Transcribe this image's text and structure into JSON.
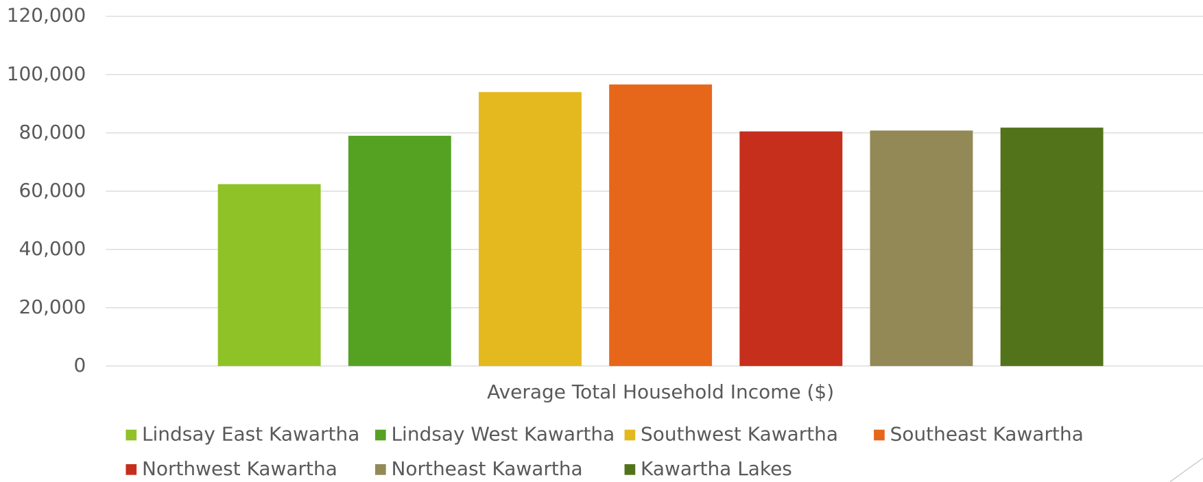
{
  "chart_data": {
    "type": "bar",
    "categories": [
      "Average Total Household Income ($)"
    ],
    "series": [
      {
        "name": "Lindsay East Kawartha",
        "color": "#8fc226",
        "values": [
          62400
        ]
      },
      {
        "name": "Lindsay West Kawartha",
        "color": "#55a223",
        "values": [
          79000
        ]
      },
      {
        "name": "Southwest Kawartha",
        "color": "#e4b920",
        "values": [
          94000
        ]
      },
      {
        "name": "Southeast Kawartha",
        "color": "#e6661a",
        "values": [
          96600
        ]
      },
      {
        "name": "Northwest Kawartha",
        "color": "#c62f1b",
        "values": [
          80500
        ]
      },
      {
        "name": "Northeast Kawartha",
        "color": "#938957",
        "values": [
          80800
        ]
      },
      {
        "name": "Kawartha Lakes",
        "color": "#53731b",
        "values": [
          81800
        ]
      }
    ],
    "ylim": [
      0,
      120000
    ],
    "yticks": [
      0,
      {
        "value": 20000,
        "label": "20,000"
      },
      {
        "value": 40000,
        "label": "40,000"
      },
      {
        "value": 60000,
        "label": "60,000"
      },
      {
        "value": 80000,
        "label": "80,000"
      },
      {
        "value": 100000,
        "label": "100,000"
      },
      {
        "value": 120000,
        "label": "120,000"
      }
    ],
    "grid": true,
    "legend": "bottom"
  }
}
